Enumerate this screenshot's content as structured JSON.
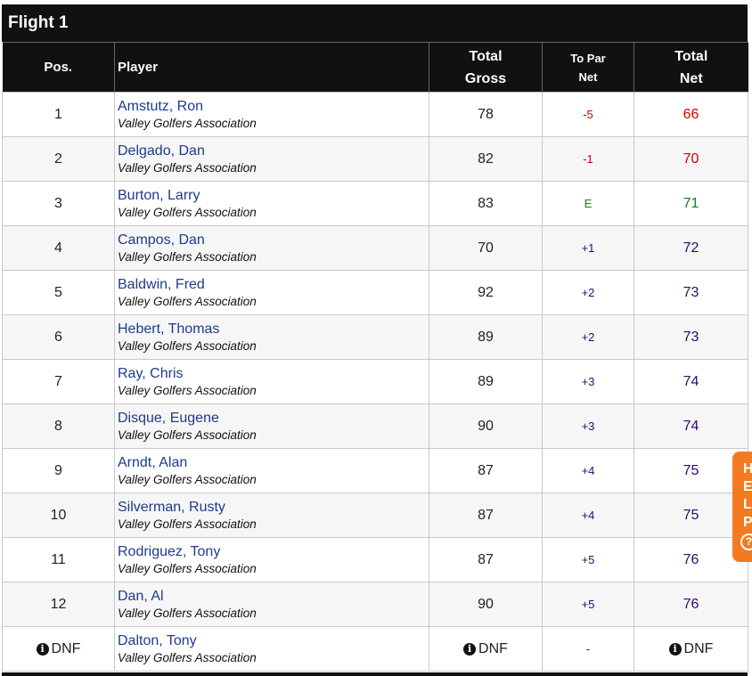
{
  "flight_title": "Flight 1",
  "headers": {
    "pos": "Pos.",
    "player": "Player",
    "total_gross_line1": "Total",
    "total_gross_line2": "Gross",
    "to_par_net_line1": "To Par",
    "to_par_net_line2": "Net",
    "total_net_line1": "Total",
    "total_net_line2": "Net"
  },
  "colors": {
    "under_par": "#cc0000",
    "even_par": "#1a7a1a",
    "over_par": "#2d0a6e",
    "player_link": "#1e3b8c",
    "help_tab": "#f47a20"
  },
  "rows": [
    {
      "pos": "1",
      "name": "Amstutz, Ron",
      "club": "Valley Golfers Association",
      "gross": "78",
      "to_par": "-5",
      "net": "66",
      "status": "under"
    },
    {
      "pos": "2",
      "name": "Delgado, Dan",
      "club": "Valley Golfers Association",
      "gross": "82",
      "to_par": "-1",
      "net": "70",
      "status": "under"
    },
    {
      "pos": "3",
      "name": "Burton, Larry",
      "club": "Valley Golfers Association",
      "gross": "83",
      "to_par": "E",
      "net": "71",
      "status": "even"
    },
    {
      "pos": "4",
      "name": "Campos, Dan",
      "club": "Valley Golfers Association",
      "gross": "70",
      "to_par": "+1",
      "net": "72",
      "status": "over"
    },
    {
      "pos": "5",
      "name": "Baldwin, Fred",
      "club": "Valley Golfers Association",
      "gross": "92",
      "to_par": "+2",
      "net": "73",
      "status": "over"
    },
    {
      "pos": "6",
      "name": "Hebert, Thomas",
      "club": "Valley Golfers Association",
      "gross": "89",
      "to_par": "+2",
      "net": "73",
      "status": "over"
    },
    {
      "pos": "7",
      "name": "Ray, Chris",
      "club": "Valley Golfers Association",
      "gross": "89",
      "to_par": "+3",
      "net": "74",
      "status": "over"
    },
    {
      "pos": "8",
      "name": "Disque, Eugene",
      "club": "Valley Golfers Association",
      "gross": "90",
      "to_par": "+3",
      "net": "74",
      "status": "over"
    },
    {
      "pos": "9",
      "name": "Arndt, Alan",
      "club": "Valley Golfers Association",
      "gross": "87",
      "to_par": "+4",
      "net": "75",
      "status": "over"
    },
    {
      "pos": "10",
      "name": "Silverman, Rusty",
      "club": "Valley Golfers Association",
      "gross": "87",
      "to_par": "+4",
      "net": "75",
      "status": "over"
    },
    {
      "pos": "11",
      "name": "Rodriguez, Tony",
      "club": "Valley Golfers Association",
      "gross": "87",
      "to_par": "+5",
      "net": "76",
      "status": "over"
    },
    {
      "pos": "12",
      "name": "Dan, Al",
      "club": "Valley Golfers Association",
      "gross": "90",
      "to_par": "+5",
      "net": "76",
      "status": "over"
    },
    {
      "pos": "DNF",
      "name": "Dalton, Tony",
      "club": "Valley Golfers Association",
      "gross": "DNF",
      "to_par": "-",
      "net": "DNF",
      "status": "dnf",
      "info_icon": "info-circle-icon"
    }
  ],
  "help_tab": {
    "letters": [
      "H",
      "E",
      "L",
      "P"
    ],
    "icon": "question-circle-icon",
    "icon_glyph": "?"
  }
}
